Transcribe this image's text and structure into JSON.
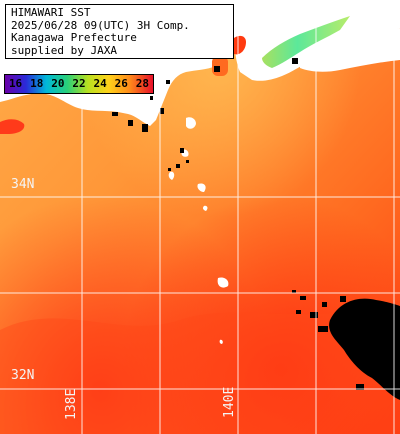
{
  "title_lines": [
    "HIMAWARI SST",
    "2025/06/28 09(UTC) 3H Comp.",
    "Kanagawa Prefecture",
    "supplied by JAXA"
  ],
  "legend": {
    "values": [
      "16",
      "18",
      "20",
      "22",
      "24",
      "26",
      "28"
    ],
    "colors": [
      "#6a00a8",
      "#2a2ad8",
      "#00b8d8",
      "#29d07a",
      "#b8e020",
      "#ffd21a",
      "#ff8c1a",
      "#e8102a"
    ]
  },
  "grid_labels": {
    "lat_top": "34N",
    "lat_bottom": "32N",
    "lon_left": "138E",
    "lon_right": "140E"
  },
  "colors": {
    "sea_base": "#ff9a3c",
    "land": "#ffffff",
    "cloud": "#000000",
    "grid": "#ffffff"
  }
}
